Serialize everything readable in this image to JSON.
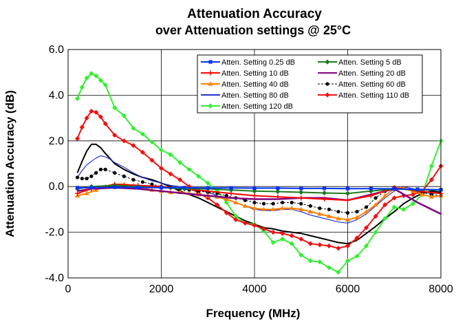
{
  "chart_data": {
    "type": "line",
    "title": "Attenuation Accuracy",
    "subtitle": "over Attenuation settings @ 25°C",
    "xlabel": "Frequency (MHz)",
    "ylabel": "Attenuation Accuracy (dB)",
    "xlim": [
      0,
      8000
    ],
    "ylim": [
      -4,
      6
    ],
    "xticks": [
      0,
      2000,
      4000,
      6000,
      8000
    ],
    "xtick_labels": [
      "0",
      "2000",
      "4000",
      "6000",
      "8000"
    ],
    "yticks": [
      -4,
      -2,
      0,
      2,
      4,
      6
    ],
    "ytick_labels": [
      "-4.0",
      "-2.0",
      "0.0",
      "2.0",
      "4.0",
      "6.0"
    ],
    "grid": true,
    "legend_position": "top-right",
    "series": [
      {
        "name": "Atten. Setting 0.25 dB",
        "color": "#0033ff",
        "marker": "square",
        "dash": "",
        "x": [
          200,
          500,
          1000,
          1500,
          2000,
          2500,
          3000,
          3500,
          4000,
          4500,
          5000,
          5500,
          6000,
          6500,
          7000,
          7500,
          8000
        ],
        "y": [
          -0.05,
          -0.05,
          -0.03,
          -0.04,
          -0.05,
          -0.05,
          -0.06,
          -0.06,
          -0.07,
          -0.07,
          -0.08,
          -0.08,
          -0.09,
          -0.09,
          -0.1,
          -0.12,
          -0.14
        ]
      },
      {
        "name": "Atten. Setting 5 dB",
        "color": "#1a7a1a",
        "marker": "diamond",
        "dash": "",
        "x": [
          200,
          500,
          1000,
          1500,
          2000,
          2500,
          3000,
          3500,
          4000,
          4500,
          5000,
          5500,
          6000,
          6500,
          7000,
          7500,
          8000
        ],
        "y": [
          -0.1,
          0.0,
          0.05,
          0.0,
          -0.05,
          -0.1,
          -0.1,
          -0.15,
          -0.2,
          -0.22,
          -0.25,
          -0.28,
          -0.3,
          -0.2,
          -0.1,
          -0.15,
          -0.15
        ]
      },
      {
        "name": "Atten. Setting 10 dB",
        "color": "#ff0000",
        "marker": "plus",
        "dash": "",
        "x": [
          200,
          500,
          1000,
          1500,
          2000,
          2500,
          3000,
          3500,
          4000,
          4500,
          5000,
          5500,
          6000,
          6500,
          7000,
          7500,
          8000
        ],
        "y": [
          -0.3,
          -0.1,
          0.1,
          0.05,
          0.0,
          -0.1,
          -0.2,
          -0.3,
          -0.4,
          -0.45,
          -0.5,
          -0.55,
          -0.6,
          -0.4,
          -0.05,
          -0.2,
          -0.3
        ]
      },
      {
        "name": "Atten. Setting 20 dB",
        "color": "#800080",
        "marker": "none",
        "dash": "",
        "x": [
          200,
          500,
          1000,
          1500,
          2000,
          2500,
          3000,
          3500,
          4000,
          4500,
          5000,
          5500,
          6000,
          6500,
          7000,
          7500,
          8000
        ],
        "y": [
          -0.2,
          -0.1,
          -0.05,
          -0.1,
          -0.2,
          -0.3,
          -0.4,
          -0.5,
          -0.55,
          -0.55,
          -0.5,
          -0.5,
          -0.6,
          -0.35,
          -0.1,
          -0.7,
          -1.2
        ]
      },
      {
        "name": "Atten. Setting 40 dB",
        "color": "#ff8000",
        "marker": "triangle",
        "dash": "",
        "x": [
          200,
          400,
          600,
          800,
          1000,
          1200,
          1400,
          1600,
          1800,
          2000,
          2200,
          2400,
          2600,
          2800,
          3000,
          3200,
          3400,
          3600,
          3800,
          4000,
          4200,
          4400,
          4600,
          4800,
          5000,
          5200,
          5400,
          5600,
          5800,
          6000,
          6200,
          6400,
          6600,
          6800,
          7000,
          7200,
          7400,
          7600,
          7800,
          8000
        ],
        "y": [
          -0.4,
          -0.3,
          -0.15,
          0.0,
          0.1,
          0.1,
          0.05,
          -0.05,
          -0.15,
          -0.2,
          -0.25,
          -0.25,
          -0.3,
          -0.35,
          -0.4,
          -0.45,
          -0.55,
          -0.7,
          -0.85,
          -0.95,
          -1.0,
          -1.0,
          -0.95,
          -0.95,
          -1.0,
          -1.1,
          -1.2,
          -1.3,
          -1.4,
          -1.45,
          -1.35,
          -1.1,
          -0.8,
          -0.4,
          -0.1,
          -0.05,
          -0.2,
          -0.35,
          -0.45,
          -0.4
        ]
      },
      {
        "name": "Atten. Setting 60 dB",
        "color": "#000000",
        "marker": "circle",
        "dash": "3,2",
        "x": [
          200,
          300,
          400,
          500,
          600,
          700,
          800,
          1000,
          1200,
          1400,
          1600,
          1800,
          2000,
          2200,
          2400,
          2600,
          2800,
          3000,
          3200,
          3400,
          3600,
          3800,
          4000,
          4200,
          4400,
          4600,
          4800,
          5000,
          5200,
          5400,
          5600,
          5800,
          6000,
          6200,
          6400,
          6600,
          6800,
          7000,
          7200,
          7400,
          7600,
          7800,
          8000
        ],
        "y": [
          0.4,
          0.35,
          0.35,
          0.45,
          0.6,
          0.75,
          0.75,
          0.6,
          0.45,
          0.3,
          0.2,
          0.1,
          0.0,
          -0.05,
          -0.1,
          -0.15,
          -0.2,
          -0.25,
          -0.3,
          -0.4,
          -0.5,
          -0.6,
          -0.7,
          -0.75,
          -0.75,
          -0.7,
          -0.7,
          -0.75,
          -0.85,
          -0.95,
          -1.0,
          -1.1,
          -1.15,
          -1.1,
          -0.9,
          -0.5,
          -0.2,
          -0.05,
          -0.05,
          -0.15,
          -0.25,
          -0.35,
          -0.4
        ]
      },
      {
        "name": "Atten. Setting 80 dB",
        "color": "#2233cc",
        "marker": "none",
        "dash": "",
        "x": [
          200,
          300,
          400,
          500,
          600,
          700,
          800,
          900,
          1000,
          1200,
          1400,
          1600,
          1800,
          2000,
          2200,
          2400,
          2600,
          2800,
          3000,
          3200,
          3400,
          3600,
          3800,
          4000,
          4200,
          4400,
          4600,
          4800,
          5000,
          5200,
          5400,
          5600,
          5800,
          6000,
          6200,
          6400,
          6600,
          6800,
          7000,
          7200,
          7400,
          7600,
          7800,
          8000
        ],
        "y": [
          0.4,
          0.7,
          0.95,
          1.1,
          1.25,
          1.35,
          1.3,
          1.2,
          1.05,
          0.85,
          0.6,
          0.4,
          0.25,
          0.15,
          0.05,
          0.0,
          -0.05,
          -0.15,
          -0.25,
          -0.4,
          -0.55,
          -0.7,
          -0.85,
          -1.0,
          -1.05,
          -1.05,
          -1.0,
          -1.0,
          -1.1,
          -1.25,
          -1.35,
          -1.45,
          -1.55,
          -1.6,
          -1.45,
          -1.2,
          -0.85,
          -0.5,
          -0.2,
          0.0,
          -0.1,
          -0.2,
          -0.3,
          -0.3
        ]
      },
      {
        "name": "Atten. Setting 110 dB",
        "color": "#ee1111",
        "marker": "diamond",
        "dash": "",
        "x": [
          200,
          300,
          400,
          500,
          600,
          700,
          800,
          1000,
          1200,
          1400,
          1600,
          1800,
          2000,
          2200,
          2400,
          2600,
          2800,
          3000,
          3200,
          3400,
          3600,
          3800,
          4000,
          4200,
          4400,
          4600,
          4800,
          5000,
          5200,
          5400,
          5600,
          5800,
          6000,
          6200,
          6400,
          6600,
          6800,
          7000,
          7200,
          7400,
          7600,
          7800,
          8000
        ],
        "y": [
          2.1,
          2.6,
          3.0,
          3.3,
          3.25,
          3.05,
          2.75,
          2.25,
          2.0,
          1.8,
          1.5,
          1.15,
          0.8,
          0.55,
          0.3,
          0.0,
          -0.3,
          -0.5,
          -0.8,
          -1.15,
          -1.45,
          -1.6,
          -1.7,
          -1.85,
          -2.0,
          -2.05,
          -2.15,
          -2.3,
          -2.5,
          -2.55,
          -2.6,
          -2.7,
          -2.6,
          -2.25,
          -1.8,
          -1.3,
          -0.8,
          -0.5,
          -0.4,
          -0.35,
          -0.2,
          0.3,
          0.9
        ]
      },
      {
        "name": "Atten. Setting 120 dB",
        "color": "#33ee33",
        "marker": "diamond",
        "dash": "",
        "x": [
          200,
          300,
          400,
          500,
          600,
          700,
          800,
          1000,
          1200,
          1400,
          1600,
          1800,
          2000,
          2200,
          2400,
          2600,
          2800,
          3000,
          3200,
          3400,
          3600,
          3800,
          4000,
          4200,
          4400,
          4600,
          4800,
          5000,
          5200,
          5400,
          5600,
          5800,
          6000,
          6200,
          6400,
          6600,
          6800,
          7000,
          7200,
          7400,
          7600,
          7800,
          8000
        ],
        "y": [
          3.85,
          4.35,
          4.75,
          4.95,
          4.85,
          4.65,
          4.45,
          3.45,
          3.1,
          2.55,
          2.3,
          1.95,
          1.6,
          1.4,
          1.05,
          0.75,
          0.45,
          0.15,
          -0.2,
          -0.7,
          -1.3,
          -1.6,
          -1.65,
          -1.95,
          -2.45,
          -2.3,
          -2.5,
          -3.0,
          -3.25,
          -3.3,
          -3.55,
          -3.75,
          -3.25,
          -3.05,
          -2.6,
          -2.0,
          -1.4,
          -0.9,
          -1.0,
          -0.75,
          -0.35,
          0.9,
          2.0
        ]
      },
      {
        "name": "",
        "color": "#000000",
        "marker": "none",
        "dash": "",
        "in_legend": false,
        "x": [
          200,
          300,
          400,
          500,
          600,
          700,
          800,
          1000,
          1200,
          1400,
          1600,
          1800,
          2000,
          2200,
          2400,
          2600,
          2800,
          3000,
          3200,
          3400,
          3600,
          3800,
          4000,
          4200,
          4400,
          4600,
          4800,
          5000,
          5200,
          5400,
          5600,
          5800,
          6000,
          6200,
          6400,
          6600,
          6800,
          7000,
          7200,
          7400,
          7600,
          7800,
          8000
        ],
        "y": [
          0.6,
          1.1,
          1.55,
          1.85,
          1.85,
          1.7,
          1.45,
          1.0,
          0.75,
          0.55,
          0.4,
          0.3,
          0.15,
          0.0,
          -0.2,
          -0.35,
          -0.5,
          -0.7,
          -0.9,
          -1.1,
          -1.3,
          -1.5,
          -1.65,
          -1.8,
          -1.85,
          -1.95,
          -2.0,
          -2.05,
          -2.15,
          -2.25,
          -2.35,
          -2.45,
          -2.5,
          -2.35,
          -2.05,
          -1.75,
          -1.4,
          -1.1,
          -0.75,
          -0.5,
          -0.3,
          -0.2,
          -0.25
        ]
      }
    ]
  }
}
